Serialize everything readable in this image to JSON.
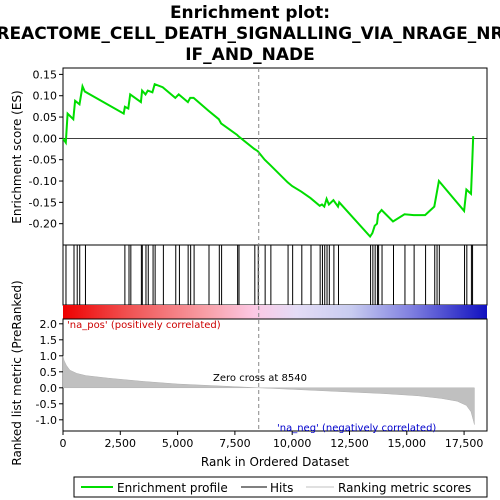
{
  "chart_data": {
    "type": "line",
    "title": "Enrichment plot:\nREACTOME_CELL_DEATH_SIGNALLING_VIA_NRAGE_NR\nIF_AND_NADE",
    "title_lines": [
      "Enrichment plot:",
      "REACTOME_CELL_DEATH_SIGNALLING_VIA_NRAGE_NR",
      "IF_AND_NADE"
    ],
    "colors": {
      "enrichment": "#00dd00",
      "hits": "#000000",
      "ranking": "#c0c0c0",
      "zero_cross": "#888888",
      "pos_label": "#cc0000",
      "neg_label": "#0000cc"
    },
    "top_panel": {
      "ylabel": "Enrichment score (ES)",
      "ylim": [
        -0.25,
        0.165
      ],
      "yticks": [
        0.15,
        0.1,
        0.05,
        0.0,
        -0.05,
        -0.1,
        -0.15,
        -0.2
      ],
      "ytick_labels": [
        "0.15",
        "0.10",
        "0.05",
        "0.00",
        "-0.05",
        "-0.10",
        "-0.15",
        "-0.20"
      ],
      "series": {
        "name": "Enrichment profile",
        "x": [
          0,
          120,
          200,
          450,
          530,
          720,
          850,
          950,
          2650,
          2700,
          2850,
          2930,
          3400,
          3450,
          3600,
          3700,
          3900,
          4000,
          4350,
          4900,
          5050,
          5450,
          5550,
          5700,
          6350,
          6800,
          6900,
          7600,
          7650,
          8350,
          8500,
          8800,
          9050,
          9800,
          10000,
          10400,
          10800,
          11200,
          11300,
          11400,
          11500,
          11600,
          11800,
          12000,
          12050,
          13400,
          13500,
          13600,
          13700,
          13750,
          13900,
          14400,
          14900,
          15300,
          15800,
          16200,
          16300,
          16400,
          17500,
          17600,
          17800,
          17850,
          17900
        ],
        "y": [
          0.0,
          -0.01,
          0.058,
          0.045,
          0.088,
          0.08,
          0.122,
          0.11,
          0.058,
          0.074,
          0.07,
          0.103,
          0.085,
          0.112,
          0.103,
          0.112,
          0.108,
          0.127,
          0.12,
          0.095,
          0.103,
          0.085,
          0.095,
          0.095,
          0.065,
          0.045,
          0.035,
          0.008,
          0.005,
          -0.025,
          -0.03,
          -0.05,
          -0.063,
          -0.103,
          -0.112,
          -0.125,
          -0.14,
          -0.158,
          -0.155,
          -0.16,
          -0.142,
          -0.155,
          -0.145,
          -0.16,
          -0.15,
          -0.23,
          -0.222,
          -0.205,
          -0.2,
          -0.178,
          -0.168,
          -0.195,
          -0.178,
          -0.18,
          -0.18,
          -0.16,
          -0.13,
          -0.1,
          -0.17,
          -0.12,
          -0.13,
          -0.065,
          0.005
        ]
      }
    },
    "hits": [
      130,
      480,
      620,
      730,
      980,
      2700,
      2880,
      2960,
      3420,
      3460,
      3620,
      3720,
      3930,
      4020,
      4380,
      4920,
      5080,
      5460,
      5570,
      5720,
      6370,
      6820,
      6920,
      7620,
      7680,
      8370,
      8520,
      8820,
      9070,
      9820,
      10020,
      10420,
      10820,
      11220,
      11320,
      11420,
      11520,
      11620,
      11820,
      12020,
      13420,
      13520,
      13620,
      13720,
      13770,
      13920,
      14420,
      14920,
      15320,
      15820,
      16220,
      16320,
      16420,
      17520,
      17620,
      17820,
      17870
    ],
    "bottom_panel": {
      "ylabel": "Ranked list metric (PreRanked)",
      "ylim": [
        -1.35,
        2.15
      ],
      "yticks": [
        2.0,
        1.5,
        1.0,
        0.5,
        0.0,
        -0.5,
        -1.0
      ],
      "ytick_labels": [
        "2.0",
        "1.5",
        "1.0",
        "0.5",
        "0.0",
        "-0.5",
        "-1.0"
      ],
      "xlabel": "Rank in Ordered Dataset",
      "xlim": [
        0,
        18500
      ],
      "xticks": [
        0,
        2500,
        5000,
        7500,
        10000,
        12500,
        15000,
        17500
      ],
      "xtick_labels": [
        "0",
        "2,500",
        "5,000",
        "7,500",
        "10,000",
        "12,500",
        "15,000",
        "17,500"
      ],
      "ranking_x": [
        0,
        50,
        150,
        300,
        600,
        1000,
        2000,
        3500,
        5000,
        6500,
        8000,
        8540,
        9500,
        11000,
        12500,
        14000,
        15500,
        16500,
        17200,
        17600,
        17800,
        17900,
        17950
      ],
      "ranking_y": [
        1.0,
        0.85,
        0.7,
        0.55,
        0.45,
        0.38,
        0.3,
        0.2,
        0.12,
        0.07,
        0.02,
        0.0,
        -0.03,
        -0.08,
        -0.13,
        -0.18,
        -0.25,
        -0.33,
        -0.42,
        -0.55,
        -0.75,
        -1.0,
        -1.15
      ],
      "zero_cross": 8540,
      "zero_cross_label": "Zero cross at 8540",
      "pos_label": "'na_pos' (positively correlated)",
      "neg_label": "'na_neg' (negatively correlated)"
    },
    "legend": {
      "items": [
        {
          "name": "Enrichment profile",
          "color": "#00dd00"
        },
        {
          "name": "Hits",
          "color": "#000000"
        },
        {
          "name": "Ranking metric scores",
          "color": "#c0c0c0"
        }
      ]
    }
  }
}
